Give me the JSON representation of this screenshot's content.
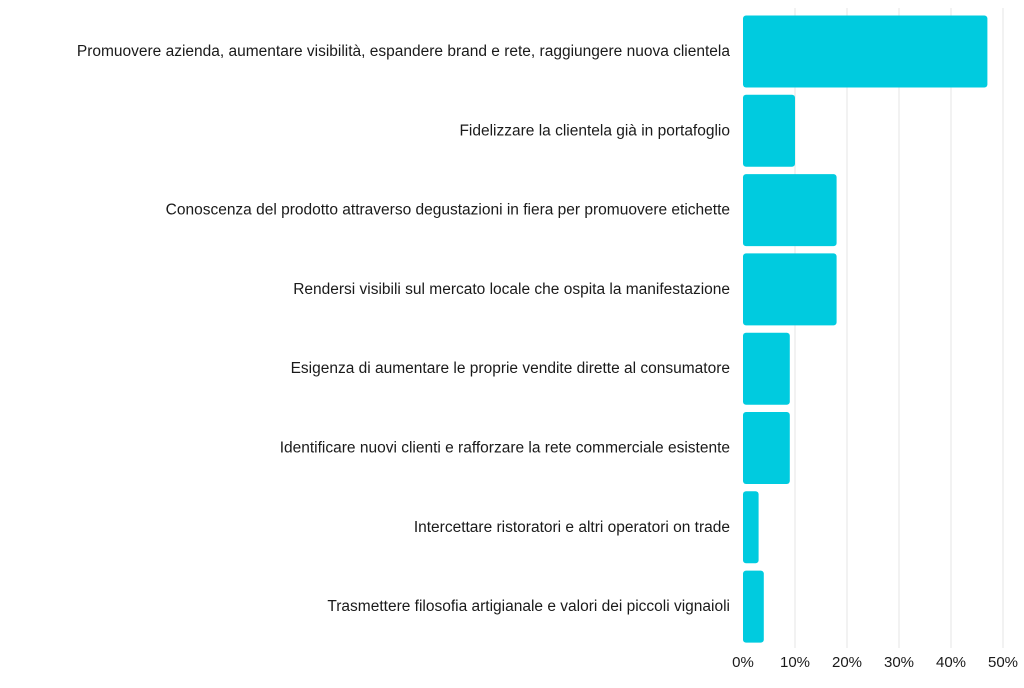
{
  "chart_data": {
    "type": "bar",
    "orientation": "horizontal",
    "categories": [
      "Promuovere azienda, aumentare visibilità, espandere brand e rete, raggiungere nuova clientela",
      "Fidelizzare la clientela già in portafoglio",
      "Conoscenza del prodotto attraverso degustazioni in fiera per promuovere etichette",
      "Rendersi visibili sul mercato locale che ospita la manifestazione",
      "Esigenza di aumentare le proprie vendite dirette al consumatore",
      "Identificare nuovi clienti e rafforzare la rete commerciale esistente",
      "Intercettare ristoratori e altri operatori on trade",
      "Trasmettere filosofia artigianale e valori dei piccoli vignaioli"
    ],
    "values": [
      47,
      10,
      18,
      18,
      9,
      9,
      3,
      4
    ],
    "x_ticks": [
      "0%",
      "10%",
      "20%",
      "30%",
      "40%",
      "50%"
    ],
    "xlim": [
      0,
      50
    ],
    "unit": "%",
    "title": "",
    "xlabel": "",
    "ylabel": "",
    "grid": true,
    "legend": "none",
    "colors": {
      "bar": "#00CBDF",
      "grid": "#e6e6e6",
      "text": "#1a1a1a"
    }
  }
}
